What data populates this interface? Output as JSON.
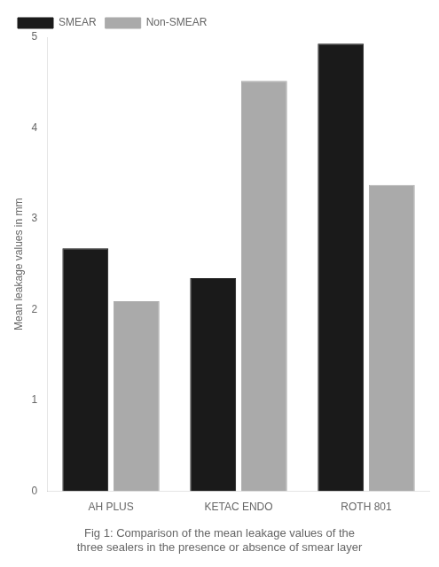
{
  "chart_data": {
    "type": "bar",
    "title": "Fig 1: Comparison of the mean leakage values of the three sealers in the presence or absence of smear layer",
    "categories": [
      "AH PLUS",
      "KETAC ENDO",
      "ROTH 801"
    ],
    "series": [
      {
        "name": "SMEAR",
        "color": "#1a1a1a",
        "values": [
          2.675,
          2.346,
          4.929
        ]
      },
      {
        "name": "Non-SMEAR",
        "color": "#aaaaaa",
        "values": [
          2.092,
          4.52,
          3.372
        ]
      }
    ],
    "y_label": "Mean leakage values in mm",
    "ylim": [
      0,
      5
    ],
    "yticks": [
      0,
      1,
      2,
      3,
      4,
      5
    ],
    "grid": false,
    "legend": "upper left"
  }
}
